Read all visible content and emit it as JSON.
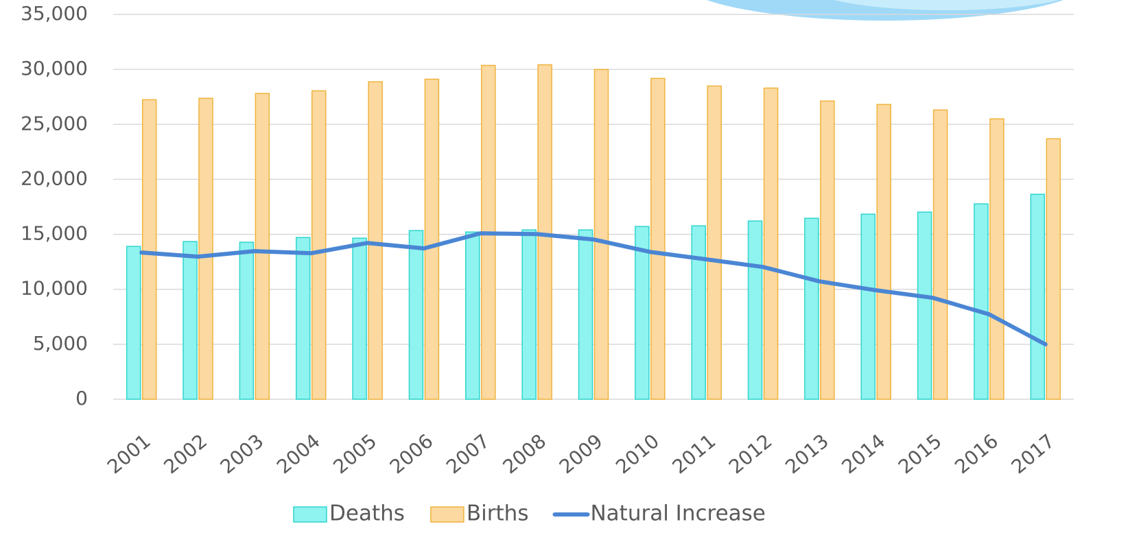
{
  "chart_data": {
    "type": "bar-line",
    "categories": [
      "2001",
      "2002",
      "2003",
      "2004",
      "2005",
      "2006",
      "2007",
      "2008",
      "2009",
      "2010",
      "2011",
      "2012",
      "2013",
      "2014",
      "2015",
      "2016",
      "2017"
    ],
    "series": [
      {
        "name": "Deaths",
        "type": "bar",
        "color": "#8ff3ef",
        "edge": "#2fd5cd",
        "values": [
          13900,
          14340,
          14280,
          14710,
          14650,
          15340,
          15210,
          15400,
          15400,
          15710,
          15770,
          16210,
          16460,
          16830,
          17020,
          17770,
          18640
        ]
      },
      {
        "name": "Births",
        "type": "bar",
        "color": "#fcd9a0",
        "edge": "#efb33c",
        "values": [
          27240,
          27370,
          27810,
          28050,
          28870,
          29110,
          30360,
          30420,
          29990,
          29180,
          28490,
          28300,
          27120,
          26810,
          26310,
          25500,
          23690
        ]
      },
      {
        "name": "Natural Increase",
        "type": "line",
        "color": "#4a86d4",
        "values": [
          13340,
          12970,
          13470,
          13280,
          14210,
          13720,
          15090,
          15020,
          14530,
          13400,
          12720,
          12030,
          10720,
          9910,
          9230,
          7730,
          4990
        ]
      }
    ],
    "ylim": [
      0,
      35000
    ],
    "yticks": [
      0,
      {
        "value": 5000,
        "label": "5,000"
      },
      {
        "value": 10000,
        "label": "10,000"
      },
      {
        "value": 15000,
        "label": "15,000"
      },
      {
        "value": 20000,
        "label": "20,000"
      },
      {
        "value": 25000,
        "label": "25,000"
      },
      {
        "value": 30000,
        "label": "30,000"
      },
      {
        "value": 35000,
        "label": "35,000"
      }
    ],
    "grid": true
  }
}
